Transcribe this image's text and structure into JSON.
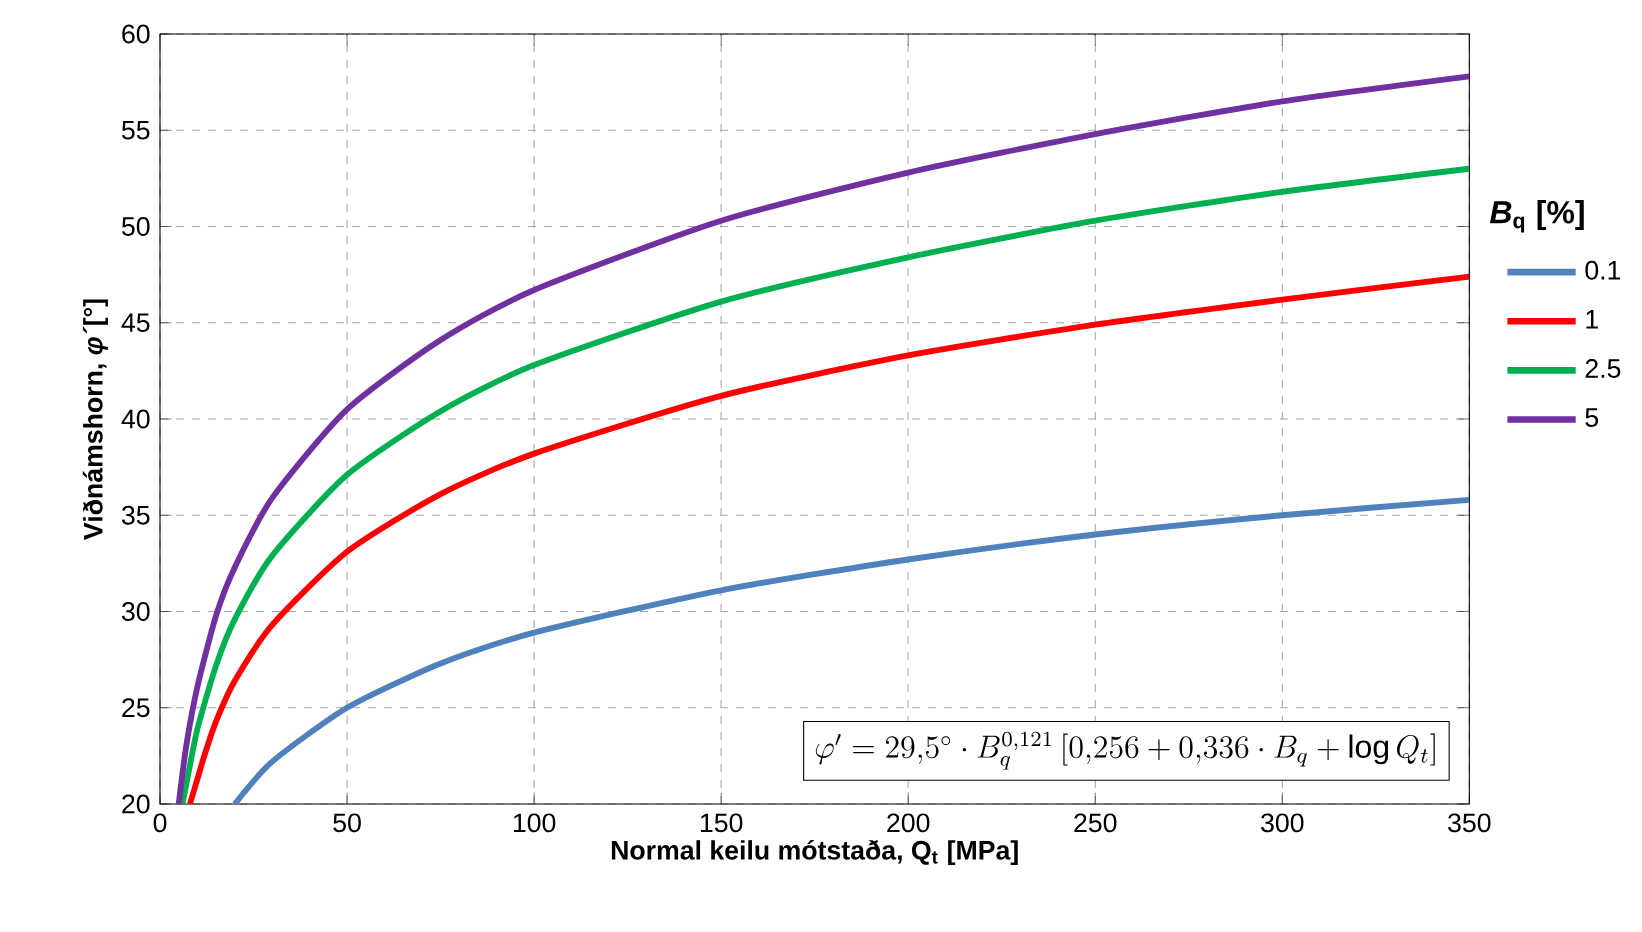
{
  "chart_data": {
    "type": "line",
    "xlabel": "Normal keilu mótstaða, Q$_{t}$ [MPa]",
    "ylabel": "Viðnámshorn, *φ´*[°]",
    "legend_title": "*B*$_{q}$ [%]",
    "legend": "right",
    "grid": true,
    "xlim": [
      0,
      350
    ],
    "xticks": [
      0,
      50,
      100,
      150,
      200,
      250,
      300,
      350
    ],
    "ylim": [
      20,
      60
    ],
    "yticks": [
      20,
      25,
      30,
      35,
      40,
      45,
      50,
      55,
      60
    ],
    "annotations": [
      "\\varphi' = 29{,}5^{\\circ} \\cdot B_q^{0{,}121}\\left[0{,}256 + 0{,}336 \\cdot B_q + \\log Q_t\\right]"
    ],
    "series": [
      {
        "name": "0.1",
        "color": "#4f81bd",
        "x": [
          20,
          30,
          50,
          75,
          100,
          150,
          200,
          250,
          300,
          350
        ],
        "values": [
          20,
          22.2,
          25,
          27.3,
          28.9,
          31.1,
          32.7,
          34,
          35,
          35.8
        ]
      },
      {
        "name": "1",
        "color": "#ff0000",
        "x": [
          8,
          10,
          12,
          15,
          20,
          30,
          50,
          75,
          100,
          150,
          200,
          250,
          300,
          350
        ],
        "values": [
          20,
          21.3,
          22.6,
          24.3,
          26.4,
          29.3,
          33.1,
          36.1,
          38.2,
          41.2,
          43.3,
          44.9,
          46.2,
          47.4
        ]
      },
      {
        "name": "2.5",
        "color": "#00b050",
        "x": [
          6,
          7,
          10,
          15,
          20,
          30,
          50,
          75,
          100,
          150,
          200,
          250,
          300,
          350
        ],
        "values": [
          20,
          21,
          23.9,
          27.2,
          29.6,
          32.9,
          37.1,
          40.4,
          42.8,
          46.1,
          48.4,
          50.3,
          51.8,
          53
        ]
      },
      {
        "name": "5",
        "color": "#7030a0",
        "x": [
          5,
          7,
          10,
          15,
          20,
          30,
          50,
          75,
          100,
          150,
          200,
          250,
          300,
          350
        ],
        "values": [
          20,
          23,
          26.1,
          29.8,
          32.3,
          35.9,
          40.5,
          44.1,
          46.7,
          50.3,
          52.8,
          54.8,
          56.5,
          57.8
        ]
      }
    ]
  }
}
